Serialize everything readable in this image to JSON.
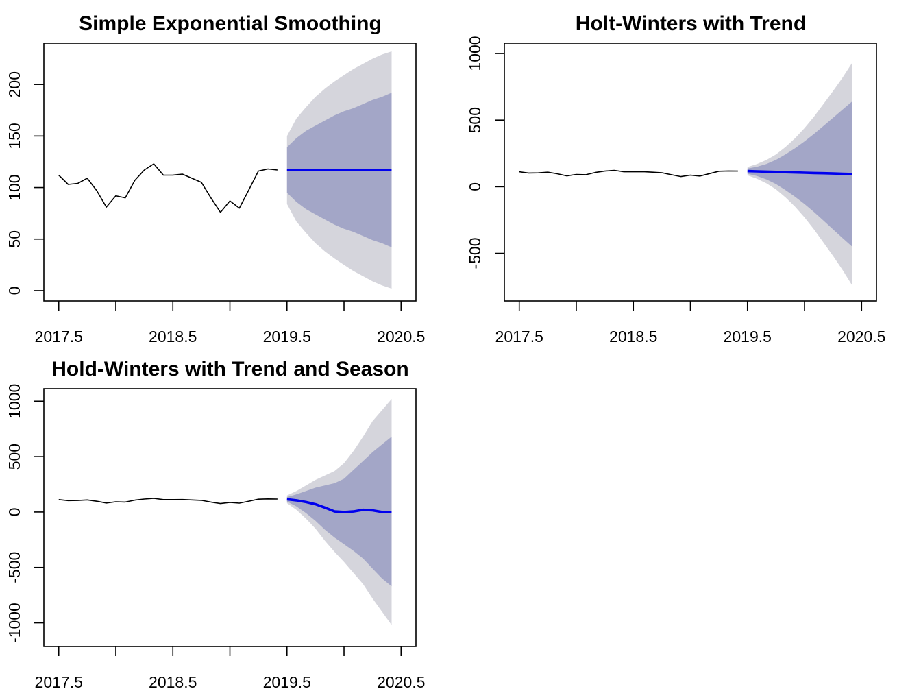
{
  "colors": {
    "history": "#000000",
    "forecast": "#0000ee",
    "band_80": "#a3a6c7",
    "band_95": "#d5d5dc"
  },
  "chart_data": [
    {
      "type": "line",
      "title": "Simple Exponential Smoothing",
      "xlabel": "",
      "ylabel": "",
      "xlim": [
        2017.5,
        2020.5
      ],
      "ylim": [
        0,
        230
      ],
      "x_ticks": [
        "2017.5",
        "2018.5",
        "2019.5",
        "2020.5"
      ],
      "y_ticks": [
        "0",
        "50",
        "100",
        "150",
        "200"
      ],
      "history": {
        "x": [
          2017.5,
          2017.583,
          2017.667,
          2017.75,
          2017.833,
          2017.917,
          2018.0,
          2018.083,
          2018.167,
          2018.25,
          2018.333,
          2018.417,
          2018.5,
          2018.583,
          2018.667,
          2018.75,
          2018.833,
          2018.917,
          2019.0,
          2019.083,
          2019.167,
          2019.25,
          2019.333,
          2019.417
        ],
        "y": [
          112,
          103,
          104,
          109,
          97,
          81,
          92,
          90,
          107,
          117,
          123,
          112,
          112,
          113,
          109,
          105,
          90,
          76,
          87,
          80,
          98,
          116,
          118,
          117
        ]
      },
      "forecast": {
        "x": [
          2019.5,
          2019.583,
          2019.667,
          2019.75,
          2019.833,
          2019.917,
          2020.0,
          2020.083,
          2020.167,
          2020.25,
          2020.333,
          2020.417
        ],
        "mean": [
          117,
          117,
          117,
          117,
          117,
          117,
          117,
          117,
          117,
          117,
          117,
          117
        ],
        "lo80": [
          95,
          86,
          79,
          74,
          69,
          64,
          60,
          57,
          53,
          49,
          46,
          42
        ],
        "hi80": [
          139,
          148,
          155,
          160,
          165,
          170,
          174,
          177,
          181,
          185,
          188,
          192
        ],
        "lo95": [
          84,
          67,
          56,
          46,
          38,
          31,
          25,
          19,
          14,
          9,
          5,
          2
        ],
        "hi95": [
          150,
          167,
          178,
          188,
          196,
          203,
          209,
          215,
          220,
          225,
          229,
          232
        ]
      }
    },
    {
      "type": "line",
      "title": "Holt-Winters with Trend",
      "xlabel": "",
      "ylabel": "",
      "xlim": [
        2017.5,
        2020.5
      ],
      "ylim": [
        -780,
        1000
      ],
      "x_ticks": [
        "2017.5",
        "2018.5",
        "2019.5",
        "2020.5"
      ],
      "y_ticks": [
        "-500",
        "0",
        "500",
        "1000"
      ],
      "history": {
        "x": [
          2017.5,
          2017.583,
          2017.667,
          2017.75,
          2017.833,
          2017.917,
          2018.0,
          2018.083,
          2018.167,
          2018.25,
          2018.333,
          2018.417,
          2018.5,
          2018.583,
          2018.667,
          2018.75,
          2018.833,
          2018.917,
          2019.0,
          2019.083,
          2019.167,
          2019.25,
          2019.333,
          2019.417
        ],
        "y": [
          112,
          103,
          104,
          109,
          97,
          81,
          92,
          90,
          107,
          117,
          123,
          112,
          112,
          113,
          109,
          105,
          90,
          76,
          87,
          80,
          98,
          116,
          118,
          117
        ]
      },
      "forecast": {
        "x": [
          2019.5,
          2019.583,
          2019.667,
          2019.75,
          2019.833,
          2019.917,
          2020.0,
          2020.083,
          2020.167,
          2020.25,
          2020.333,
          2020.417
        ],
        "mean": [
          117,
          115,
          113,
          111,
          109,
          107,
          105,
          103,
          101,
          99,
          97,
          95
        ],
        "lo80": [
          97,
          80,
          55,
          20,
          -25,
          -75,
          -130,
          -190,
          -255,
          -320,
          -385,
          -450
        ],
        "hi80": [
          137,
          150,
          171,
          202,
          243,
          289,
          340,
          396,
          457,
          518,
          579,
          640
        ],
        "lo95": [
          86,
          60,
          25,
          -20,
          -80,
          -150,
          -230,
          -320,
          -420,
          -520,
          -625,
          -740
        ],
        "hi95": [
          148,
          170,
          201,
          242,
          298,
          364,
          440,
          526,
          622,
          718,
          819,
          930
        ]
      }
    },
    {
      "type": "line",
      "title": "Hold-Winters with Trend and Season",
      "xlabel": "",
      "ylabel": "",
      "xlim": [
        2017.5,
        2020.5
      ],
      "ylim": [
        -1120,
        1020
      ],
      "x_ticks": [
        "2017.5",
        "2018.5",
        "2019.5",
        "2020.5"
      ],
      "y_ticks": [
        "-1000",
        "-500",
        "0",
        "500",
        "1000"
      ],
      "history": {
        "x": [
          2017.5,
          2017.583,
          2017.667,
          2017.75,
          2017.833,
          2017.917,
          2018.0,
          2018.083,
          2018.167,
          2018.25,
          2018.333,
          2018.417,
          2018.5,
          2018.583,
          2018.667,
          2018.75,
          2018.833,
          2018.917,
          2019.0,
          2019.083,
          2019.167,
          2019.25,
          2019.333,
          2019.417
        ],
        "y": [
          112,
          103,
          104,
          109,
          97,
          81,
          92,
          90,
          107,
          117,
          123,
          112,
          112,
          113,
          109,
          105,
          90,
          76,
          87,
          80,
          98,
          116,
          118,
          117
        ]
      },
      "forecast": {
        "x": [
          2019.5,
          2019.583,
          2019.667,
          2019.75,
          2019.833,
          2019.917,
          2020.0,
          2020.083,
          2020.167,
          2020.25,
          2020.333,
          2020.417
        ],
        "mean": [
          115,
          105,
          90,
          70,
          40,
          5,
          0,
          5,
          20,
          15,
          0,
          0
        ],
        "lo80": [
          95,
          50,
          -10,
          -80,
          -160,
          -230,
          -290,
          -350,
          -420,
          -510,
          -600,
          -670
        ],
        "hi80": [
          135,
          160,
          190,
          220,
          240,
          260,
          300,
          380,
          460,
          540,
          610,
          680
        ],
        "lo95": [
          80,
          20,
          -60,
          -150,
          -260,
          -360,
          -450,
          -550,
          -650,
          -780,
          -900,
          -1020
        ],
        "hi95": [
          150,
          190,
          240,
          290,
          330,
          370,
          440,
          550,
          680,
          820,
          920,
          1020
        ]
      }
    }
  ]
}
